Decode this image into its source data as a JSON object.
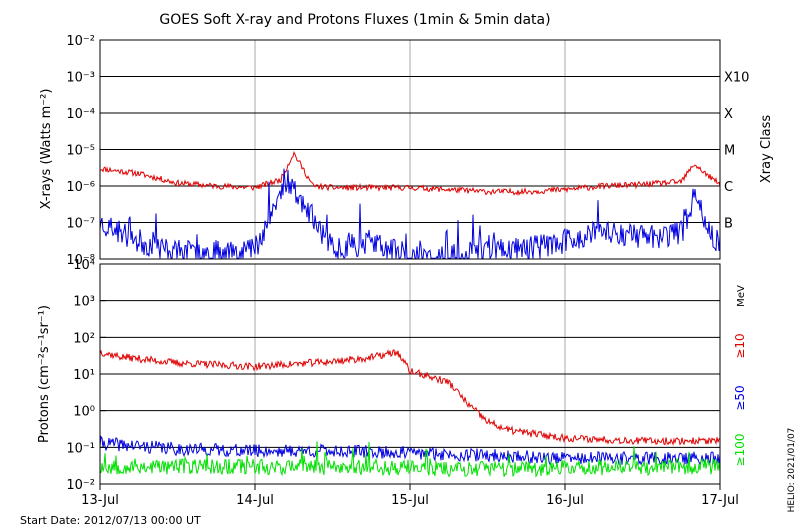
{
  "title": "GOES Soft X-ray and Protons Fluxes   (1min & 5min data)",
  "footer": {
    "start_date": "Start Date: 2012/07/13 00:00 UT",
    "credit": "HELIO: 2021/01/07"
  },
  "x_axis": {
    "ticks": [
      "13-Jul",
      "14-Jul",
      "15-Jul",
      "16-Jul",
      "17-Jul"
    ]
  },
  "colors": {
    "xray_long": "#e00000",
    "xray_short": "#0000e0",
    "protons_10": "#e00000",
    "protons_50": "#0000e0",
    "protons_100": "#00e000"
  },
  "chart_data": [
    {
      "type": "line",
      "panel": "xray",
      "ylabel": "X-rays (Watts m⁻²)",
      "yscale": "log",
      "ylim": [
        1e-08,
        0.01
      ],
      "y_ticks": [
        "10⁻⁸",
        "10⁻⁷",
        "10⁻⁶",
        "10⁻⁵",
        "10⁻⁴",
        "10⁻³",
        "10⁻²"
      ],
      "xlim": [
        "2012-07-13",
        "2012-07-17"
      ],
      "right_axis_title": "Xray Class",
      "class_labels": [
        {
          "label": "B",
          "level": 1e-07
        },
        {
          "label": "C",
          "level": 1e-06
        },
        {
          "label": "M",
          "level": 1e-05
        },
        {
          "label": "X",
          "level": 0.0001
        },
        {
          "label": "X10",
          "level": 0.001
        }
      ],
      "series": [
        {
          "color": "#e00000",
          "x": [
            "2012-07-13 00:00",
            "2012-07-13 06:00",
            "2012-07-13 12:00",
            "2012-07-13 18:00",
            "2012-07-14 00:00",
            "2012-07-14 04:00",
            "2012-07-14 06:00",
            "2012-07-14 09:00",
            "2012-07-14 12:00",
            "2012-07-14 18:00",
            "2012-07-15 00:00",
            "2012-07-15 06:00",
            "2012-07-15 12:00",
            "2012-07-15 18:00",
            "2012-07-16 00:00",
            "2012-07-16 06:00",
            "2012-07-16 12:00",
            "2012-07-16 18:00",
            "2012-07-16 20:00",
            "2012-07-16 22:00",
            "2012-07-17 00:00"
          ],
          "values": [
            3e-06,
            2.2e-06,
            1.2e-06,
            1e-06,
            9e-07,
            1.5e-06,
            8e-06,
            1e-06,
            9e-07,
            9e-07,
            9e-07,
            8e-07,
            7e-07,
            7e-07,
            8e-07,
            1e-06,
            1.1e-06,
            1.3e-06,
            4e-06,
            2e-06,
            1.1e-06
          ]
        },
        {
          "color": "#0000e0",
          "x": [
            "2012-07-13 00:00",
            "2012-07-13 06:00",
            "2012-07-13 12:00",
            "2012-07-13 18:00",
            "2012-07-14 00:00",
            "2012-07-14 05:00",
            "2012-07-14 12:00",
            "2012-07-14 18:00",
            "2012-07-15 00:00",
            "2012-07-15 06:00",
            "2012-07-15 12:00",
            "2012-07-15 18:00",
            "2012-07-16 00:00",
            "2012-07-16 06:00",
            "2012-07-16 12:00",
            "2012-07-16 18:00",
            "2012-07-16 20:00",
            "2012-07-17 00:00"
          ],
          "values": [
            1e-07,
            3e-08,
            1.5e-08,
            1.5e-08,
            2e-08,
            1.5e-06,
            2e-08,
            3e-08,
            1e-08,
            1e-08,
            1.8e-08,
            2e-08,
            3e-08,
            6e-08,
            4e-08,
            5e-08,
            5e-07,
            2e-08
          ]
        }
      ]
    },
    {
      "type": "line",
      "panel": "protons",
      "ylabel": "Protons (cm⁻²s⁻¹sr⁻¹)",
      "yscale": "log",
      "ylim": [
        0.01,
        10000
      ],
      "y_ticks": [
        "10⁻²",
        "10⁻¹",
        "10⁰",
        "10¹",
        "10²",
        "10³",
        "10⁴"
      ],
      "xlim": [
        "2012-07-13",
        "2012-07-17"
      ],
      "right_unit": "MeV",
      "threshold": 10,
      "series": [
        {
          "name": "≥10",
          "color": "#e00000",
          "x": [
            "2012-07-13 00:00",
            "2012-07-13 03:00",
            "2012-07-13 12:00",
            "2012-07-14 00:00",
            "2012-07-14 12:00",
            "2012-07-14 18:00",
            "2012-07-14 22:00",
            "2012-07-15 00:00",
            "2012-07-15 06:00",
            "2012-07-15 09:00",
            "2012-07-15 12:00",
            "2012-07-15 15:00",
            "2012-07-15 18:00",
            "2012-07-16 00:00",
            "2012-07-16 12:00",
            "2012-07-17 00:00"
          ],
          "values": [
            40,
            30,
            20,
            16,
            22,
            28,
            40,
            12,
            6,
            1.5,
            0.5,
            0.3,
            0.25,
            0.18,
            0.15,
            0.15
          ]
        },
        {
          "name": "≥50",
          "color": "#0000e0",
          "x": [
            "2012-07-13 00:00",
            "2012-07-13 12:00",
            "2012-07-14 00:00",
            "2012-07-14 12:00",
            "2012-07-15 00:00",
            "2012-07-15 12:00",
            "2012-07-16 00:00",
            "2012-07-16 12:00",
            "2012-07-17 00:00"
          ],
          "values": [
            0.13,
            0.09,
            0.08,
            0.08,
            0.07,
            0.06,
            0.05,
            0.05,
            0.05
          ]
        },
        {
          "name": "≥100",
          "color": "#00e000",
          "x": [
            "2012-07-13 00:00",
            "2012-07-14 00:00",
            "2012-07-15 00:00",
            "2012-07-15 12:00",
            "2012-07-16 00:00",
            "2012-07-17 00:00"
          ],
          "values": [
            0.03,
            0.03,
            0.028,
            0.025,
            0.028,
            0.03
          ]
        }
      ]
    }
  ]
}
